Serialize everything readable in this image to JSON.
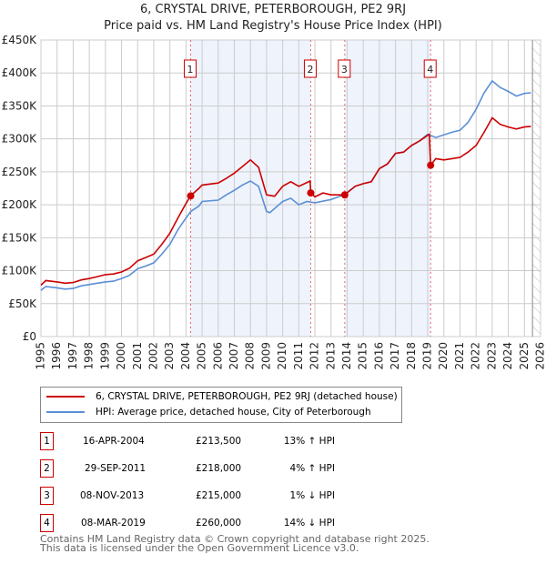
{
  "title": "6, CRYSTAL DRIVE, PETERBOROUGH, PE2 9RJ",
  "subtitle": "Price paid vs. HM Land Registry's House Price Index (HPI)",
  "chart_data": {
    "type": "line",
    "xlim": [
      1995,
      2026
    ],
    "ylim": [
      0,
      450000
    ],
    "x_ticks": [
      "1995",
      "1996",
      "1997",
      "1998",
      "1999",
      "2000",
      "2001",
      "2002",
      "2003",
      "2004",
      "2005",
      "2006",
      "2007",
      "2008",
      "2009",
      "2010",
      "2011",
      "2012",
      "2013",
      "2014",
      "2015",
      "2016",
      "2017",
      "2018",
      "2019",
      "2020",
      "2021",
      "2022",
      "2023",
      "2024",
      "2025",
      "2026"
    ],
    "y_ticks": [
      {
        "v": 0,
        "label": "£0"
      },
      {
        "v": 50000,
        "label": "£50K"
      },
      {
        "v": 100000,
        "label": "£100K"
      },
      {
        "v": 150000,
        "label": "£150K"
      },
      {
        "v": 200000,
        "label": "£200K"
      },
      {
        "v": 250000,
        "label": "£250K"
      },
      {
        "v": 300000,
        "label": "£300K"
      },
      {
        "v": 350000,
        "label": "£350K"
      },
      {
        "v": 400000,
        "label": "£400K"
      },
      {
        "v": 450000,
        "label": "£450K"
      }
    ],
    "series": [
      {
        "name": "6, CRYSTAL DRIVE, PETERBOROUGH, PE2 9RJ (detached house)",
        "color": "#cc0000",
        "x": [
          1995,
          1995.3,
          1996,
          1996.5,
          1997,
          1997.5,
          1998,
          1998.5,
          1999,
          1999.5,
          2000,
          2000.5,
          2001,
          2001.5,
          2002,
          2002.5,
          2003,
          2003.5,
          2004,
          2004.29,
          2004.8,
          2005,
          2006,
          2006.5,
          2007,
          2007.5,
          2008,
          2008.5,
          2009,
          2009.5,
          2010,
          2010.5,
          2011,
          2011.7,
          2011.74,
          2012,
          2012.5,
          2013,
          2013.85,
          2014.5,
          2015,
          2015.5,
          2016,
          2016.5,
          2017,
          2017.5,
          2018,
          2018.5,
          2019.1,
          2019.18,
          2019.5,
          2020,
          2020.5,
          2021,
          2021.5,
          2022,
          2022.5,
          2023,
          2023.5,
          2024,
          2024.5,
          2025,
          2025.4
        ],
        "y": [
          78000,
          85000,
          83000,
          81000,
          82000,
          86000,
          88000,
          91000,
          94000,
          95000,
          98000,
          104000,
          115000,
          120000,
          125000,
          140000,
          157000,
          180000,
          202000,
          213500,
          225000,
          230000,
          233000,
          240000,
          248000,
          258000,
          268000,
          257000,
          215000,
          213000,
          228000,
          235000,
          228000,
          236000,
          218000,
          212000,
          218000,
          215000,
          215000,
          228000,
          232000,
          235000,
          255000,
          262000,
          278000,
          280000,
          290000,
          297000,
          307000,
          260000,
          270000,
          268000,
          270000,
          272000,
          280000,
          290000,
          310000,
          332000,
          322000,
          318000,
          315000,
          318000,
          319000
        ]
      },
      {
        "name": "HPI: Average price, detached house, City of Peterborough",
        "color": "#5b8fd6",
        "x": [
          1995,
          1995.3,
          1996,
          1996.5,
          1997,
          1997.5,
          1998,
          1998.5,
          1999,
          1999.5,
          2000,
          2000.5,
          2001,
          2001.5,
          2002,
          2002.5,
          2003,
          2003.5,
          2004,
          2004.3,
          2004.8,
          2005,
          2006,
          2006.5,
          2007,
          2007.5,
          2008,
          2008.5,
          2009,
          2009.2,
          2010,
          2010.5,
          2011,
          2011.5,
          2012,
          2013,
          2013.8,
          2014.5,
          2015,
          2015.5,
          2016,
          2016.5,
          2017,
          2017.5,
          2018,
          2018.5,
          2019,
          2019.5,
          2020,
          2020.5,
          2021,
          2021.5,
          2022,
          2022.5,
          2023,
          2023.5,
          2024,
          2024.5,
          2025,
          2025.4
        ],
        "y": [
          70000,
          76000,
          74000,
          72000,
          73000,
          77000,
          79000,
          81000,
          83000,
          84000,
          88000,
          93000,
          103000,
          107000,
          112000,
          125000,
          140000,
          162000,
          180000,
          190000,
          198000,
          205000,
          207000,
          215000,
          222000,
          230000,
          236000,
          228000,
          190000,
          188000,
          205000,
          210000,
          200000,
          205000,
          203000,
          208000,
          215000,
          228000,
          232000,
          235000,
          255000,
          262000,
          278000,
          280000,
          290000,
          297000,
          307000,
          302000,
          306000,
          310000,
          313000,
          325000,
          345000,
          370000,
          388000,
          378000,
          372000,
          365000,
          369000,
          370000
        ]
      }
    ],
    "sales": [
      {
        "label": "1",
        "date": "16-APR-2004",
        "x": 2004.29,
        "price": "£213,500",
        "value": 213500,
        "hpi": "13% ↑ HPI"
      },
      {
        "label": "2",
        "date": "29-SEP-2011",
        "x": 2011.74,
        "price": "£218,000",
        "value": 218000,
        "hpi": "4% ↑ HPI"
      },
      {
        "label": "3",
        "date": "08-NOV-2013",
        "x": 2013.85,
        "price": "£215,000",
        "value": 215000,
        "hpi": "1% ↓ HPI"
      },
      {
        "label": "4",
        "date": "08-MAR-2019",
        "x": 2019.18,
        "price": "£260,000",
        "value": 260000,
        "hpi": "14% ↓ HPI"
      }
    ],
    "forecast_from": 2025.5
  },
  "footer": {
    "line1": "Contains HM Land Registry data © Crown copyright and database right 2025.",
    "line2": "This data is licensed under the Open Government Licence v3.0."
  }
}
